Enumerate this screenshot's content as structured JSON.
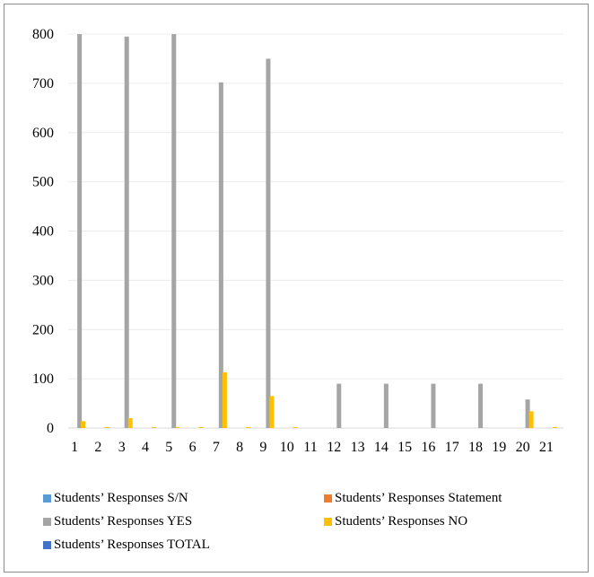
{
  "chart_data": {
    "type": "bar",
    "categories": [
      "1",
      "2",
      "3",
      "4",
      "5",
      "6",
      "7",
      "8",
      "9",
      "10",
      "11",
      "12",
      "13",
      "14",
      "15",
      "16",
      "17",
      "18",
      "19",
      "20",
      "21"
    ],
    "series": [
      {
        "name": "Students’ Responses S/N",
        "color": "#5b9bd5",
        "values": [
          0,
          0,
          0,
          0,
          0,
          0,
          0,
          0,
          0,
          0,
          0,
          0,
          0,
          0,
          0,
          0,
          0,
          0,
          0,
          0,
          0
        ]
      },
      {
        "name": "Students’ Responses Statement",
        "color": "#ed7d31",
        "values": [
          0,
          0,
          0,
          0,
          0,
          0,
          0,
          0,
          0,
          0,
          0,
          0,
          0,
          0,
          0,
          0,
          0,
          0,
          0,
          0,
          0
        ]
      },
      {
        "name": "Students’ Responses YES",
        "color": "#a5a5a5",
        "values": [
          800,
          0,
          795,
          0,
          800,
          0,
          702,
          0,
          750,
          0,
          0,
          90,
          0,
          90,
          0,
          90,
          0,
          90,
          0,
          58,
          0
        ]
      },
      {
        "name": "Students’ Responses NO",
        "color": "#ffc000",
        "values": [
          14,
          2,
          20,
          2,
          2,
          2,
          113,
          2,
          65,
          2,
          0,
          0,
          0,
          0,
          0,
          0,
          0,
          0,
          0,
          34,
          2
        ]
      },
      {
        "name": "Students’ Responses TOTAL",
        "color": "#4472c4",
        "values": [
          0,
          0,
          0,
          0,
          0,
          0,
          0,
          0,
          0,
          0,
          0,
          0,
          0,
          0,
          0,
          0,
          0,
          0,
          0,
          0,
          0
        ]
      }
    ],
    "yticks": [
      "0",
      "100",
      "200",
      "300",
      "400",
      "500",
      "600",
      "700",
      "800"
    ],
    "ylim": [
      0,
      800
    ],
    "grid": true,
    "legend_position": "bottom"
  }
}
